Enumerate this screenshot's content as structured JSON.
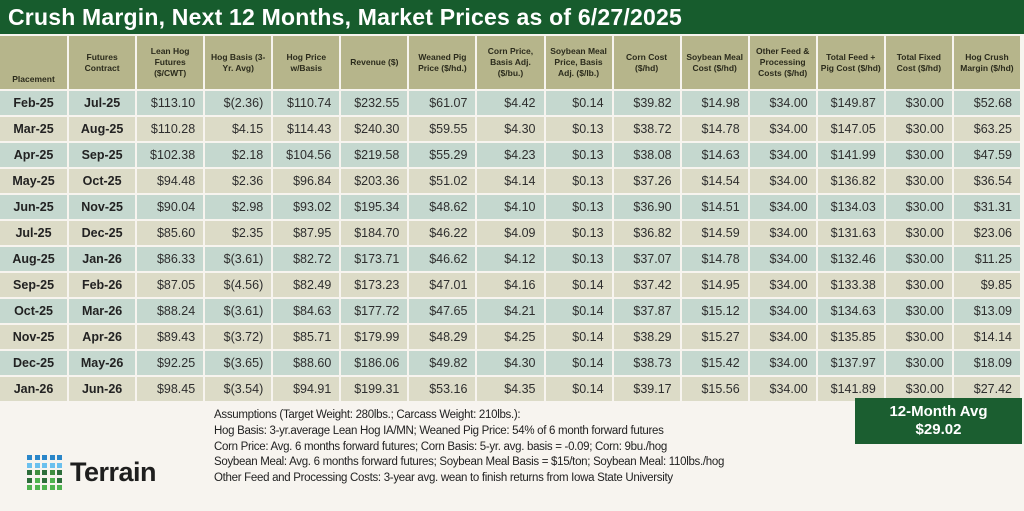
{
  "title": "Crush Margin, Next 12 Months, Market Prices as of 6/27/2025",
  "colors": {
    "brand_green": "#175c2d",
    "header_bg": "#b6b58b",
    "row_odd": "#c5d8cf",
    "row_even": "#dcdbc7"
  },
  "table": {
    "headers": [
      "Placement",
      "Futures Contract",
      "Lean Hog Futures ($/CWT)",
      "Hog Basis (3-Yr. Avg)",
      "Hog Price w/Basis",
      "Revenue ($)",
      "Weaned Pig Price ($/hd.)",
      "Corn Price, Basis Adj. ($/bu.)",
      "Soybean Meal Price, Basis Adj. ($/lb.)",
      "Corn Cost ($/hd)",
      "Soybean Meal Cost ($/hd)",
      "Other Feed & Processing Costs ($/hd)",
      "Total Feed + Pig Cost ($/hd)",
      "Total Fixed Cost ($/hd)",
      "Hog Crush Margin ($/hd)"
    ],
    "rows": [
      [
        "Feb-25",
        "Jul-25",
        "$113.10",
        "$(2.36)",
        "$110.74",
        "$232.55",
        "$61.07",
        "$4.42",
        "$0.14",
        "$39.82",
        "$14.98",
        "$34.00",
        "$149.87",
        "$30.00",
        "$52.68"
      ],
      [
        "Mar-25",
        "Aug-25",
        "$110.28",
        "$4.15",
        "$114.43",
        "$240.30",
        "$59.55",
        "$4.30",
        "$0.13",
        "$38.72",
        "$14.78",
        "$34.00",
        "$147.05",
        "$30.00",
        "$63.25"
      ],
      [
        "Apr-25",
        "Sep-25",
        "$102.38",
        "$2.18",
        "$104.56",
        "$219.58",
        "$55.29",
        "$4.23",
        "$0.13",
        "$38.08",
        "$14.63",
        "$34.00",
        "$141.99",
        "$30.00",
        "$47.59"
      ],
      [
        "May-25",
        "Oct-25",
        "$94.48",
        "$2.36",
        "$96.84",
        "$203.36",
        "$51.02",
        "$4.14",
        "$0.13",
        "$37.26",
        "$14.54",
        "$34.00",
        "$136.82",
        "$30.00",
        "$36.54"
      ],
      [
        "Jun-25",
        "Nov-25",
        "$90.04",
        "$2.98",
        "$93.02",
        "$195.34",
        "$48.62",
        "$4.10",
        "$0.13",
        "$36.90",
        "$14.51",
        "$34.00",
        "$134.03",
        "$30.00",
        "$31.31"
      ],
      [
        "Jul-25",
        "Dec-25",
        "$85.60",
        "$2.35",
        "$87.95",
        "$184.70",
        "$46.22",
        "$4.09",
        "$0.13",
        "$36.82",
        "$14.59",
        "$34.00",
        "$131.63",
        "$30.00",
        "$23.06"
      ],
      [
        "Aug-25",
        "Jan-26",
        "$86.33",
        "$(3.61)",
        "$82.72",
        "$173.71",
        "$46.62",
        "$4.12",
        "$0.13",
        "$37.07",
        "$14.78",
        "$34.00",
        "$132.46",
        "$30.00",
        "$11.25"
      ],
      [
        "Sep-25",
        "Feb-26",
        "$87.05",
        "$(4.56)",
        "$82.49",
        "$173.23",
        "$47.01",
        "$4.16",
        "$0.14",
        "$37.42",
        "$14.95",
        "$34.00",
        "$133.38",
        "$30.00",
        "$9.85"
      ],
      [
        "Oct-25",
        "Mar-26",
        "$88.24",
        "$(3.61)",
        "$84.63",
        "$177.72",
        "$47.65",
        "$4.21",
        "$0.14",
        "$37.87",
        "$15.12",
        "$34.00",
        "$134.63",
        "$30.00",
        "$13.09"
      ],
      [
        "Nov-25",
        "Apr-26",
        "$89.43",
        "$(3.72)",
        "$85.71",
        "$179.99",
        "$48.29",
        "$4.25",
        "$0.14",
        "$38.29",
        "$15.27",
        "$34.00",
        "$135.85",
        "$30.00",
        "$14.14"
      ],
      [
        "Dec-25",
        "May-26",
        "$92.25",
        "$(3.65)",
        "$88.60",
        "$186.06",
        "$49.82",
        "$4.30",
        "$0.14",
        "$38.73",
        "$15.42",
        "$34.00",
        "$137.97",
        "$30.00",
        "$18.09"
      ],
      [
        "Jan-26",
        "Jun-26",
        "$98.45",
        "$(3.54)",
        "$94.91",
        "$199.31",
        "$53.16",
        "$4.35",
        "$0.14",
        "$39.17",
        "$15.56",
        "$34.00",
        "$141.89",
        "$30.00",
        "$27.42"
      ]
    ]
  },
  "average": {
    "label": "12-Month Avg",
    "value": "$29.02"
  },
  "notes": [
    "Assumptions (Target Weight: 280lbs.; Carcass Weight: 210lbs.):",
    "Hog Basis: 3-yr.average Lean Hog IA/MN; Weaned Pig Price: 54% of 6 month forward futures",
    "Corn Price: Avg. 6 months forward futures; Corn Basis: 5-yr. avg. basis = -0.09; Corn: 9bu./hog",
    "Soybean Meal: Avg. 6 months forward futures; Soybean Meal Basis = $15/ton; Soybean Meal: 110lbs./hog",
    "Other Feed and Processing Costs: 3-year avg. wean to finish returns from Iowa State University"
  ],
  "logo": {
    "text": "Terrain",
    "icon": "dot-grid-logo-icon"
  }
}
